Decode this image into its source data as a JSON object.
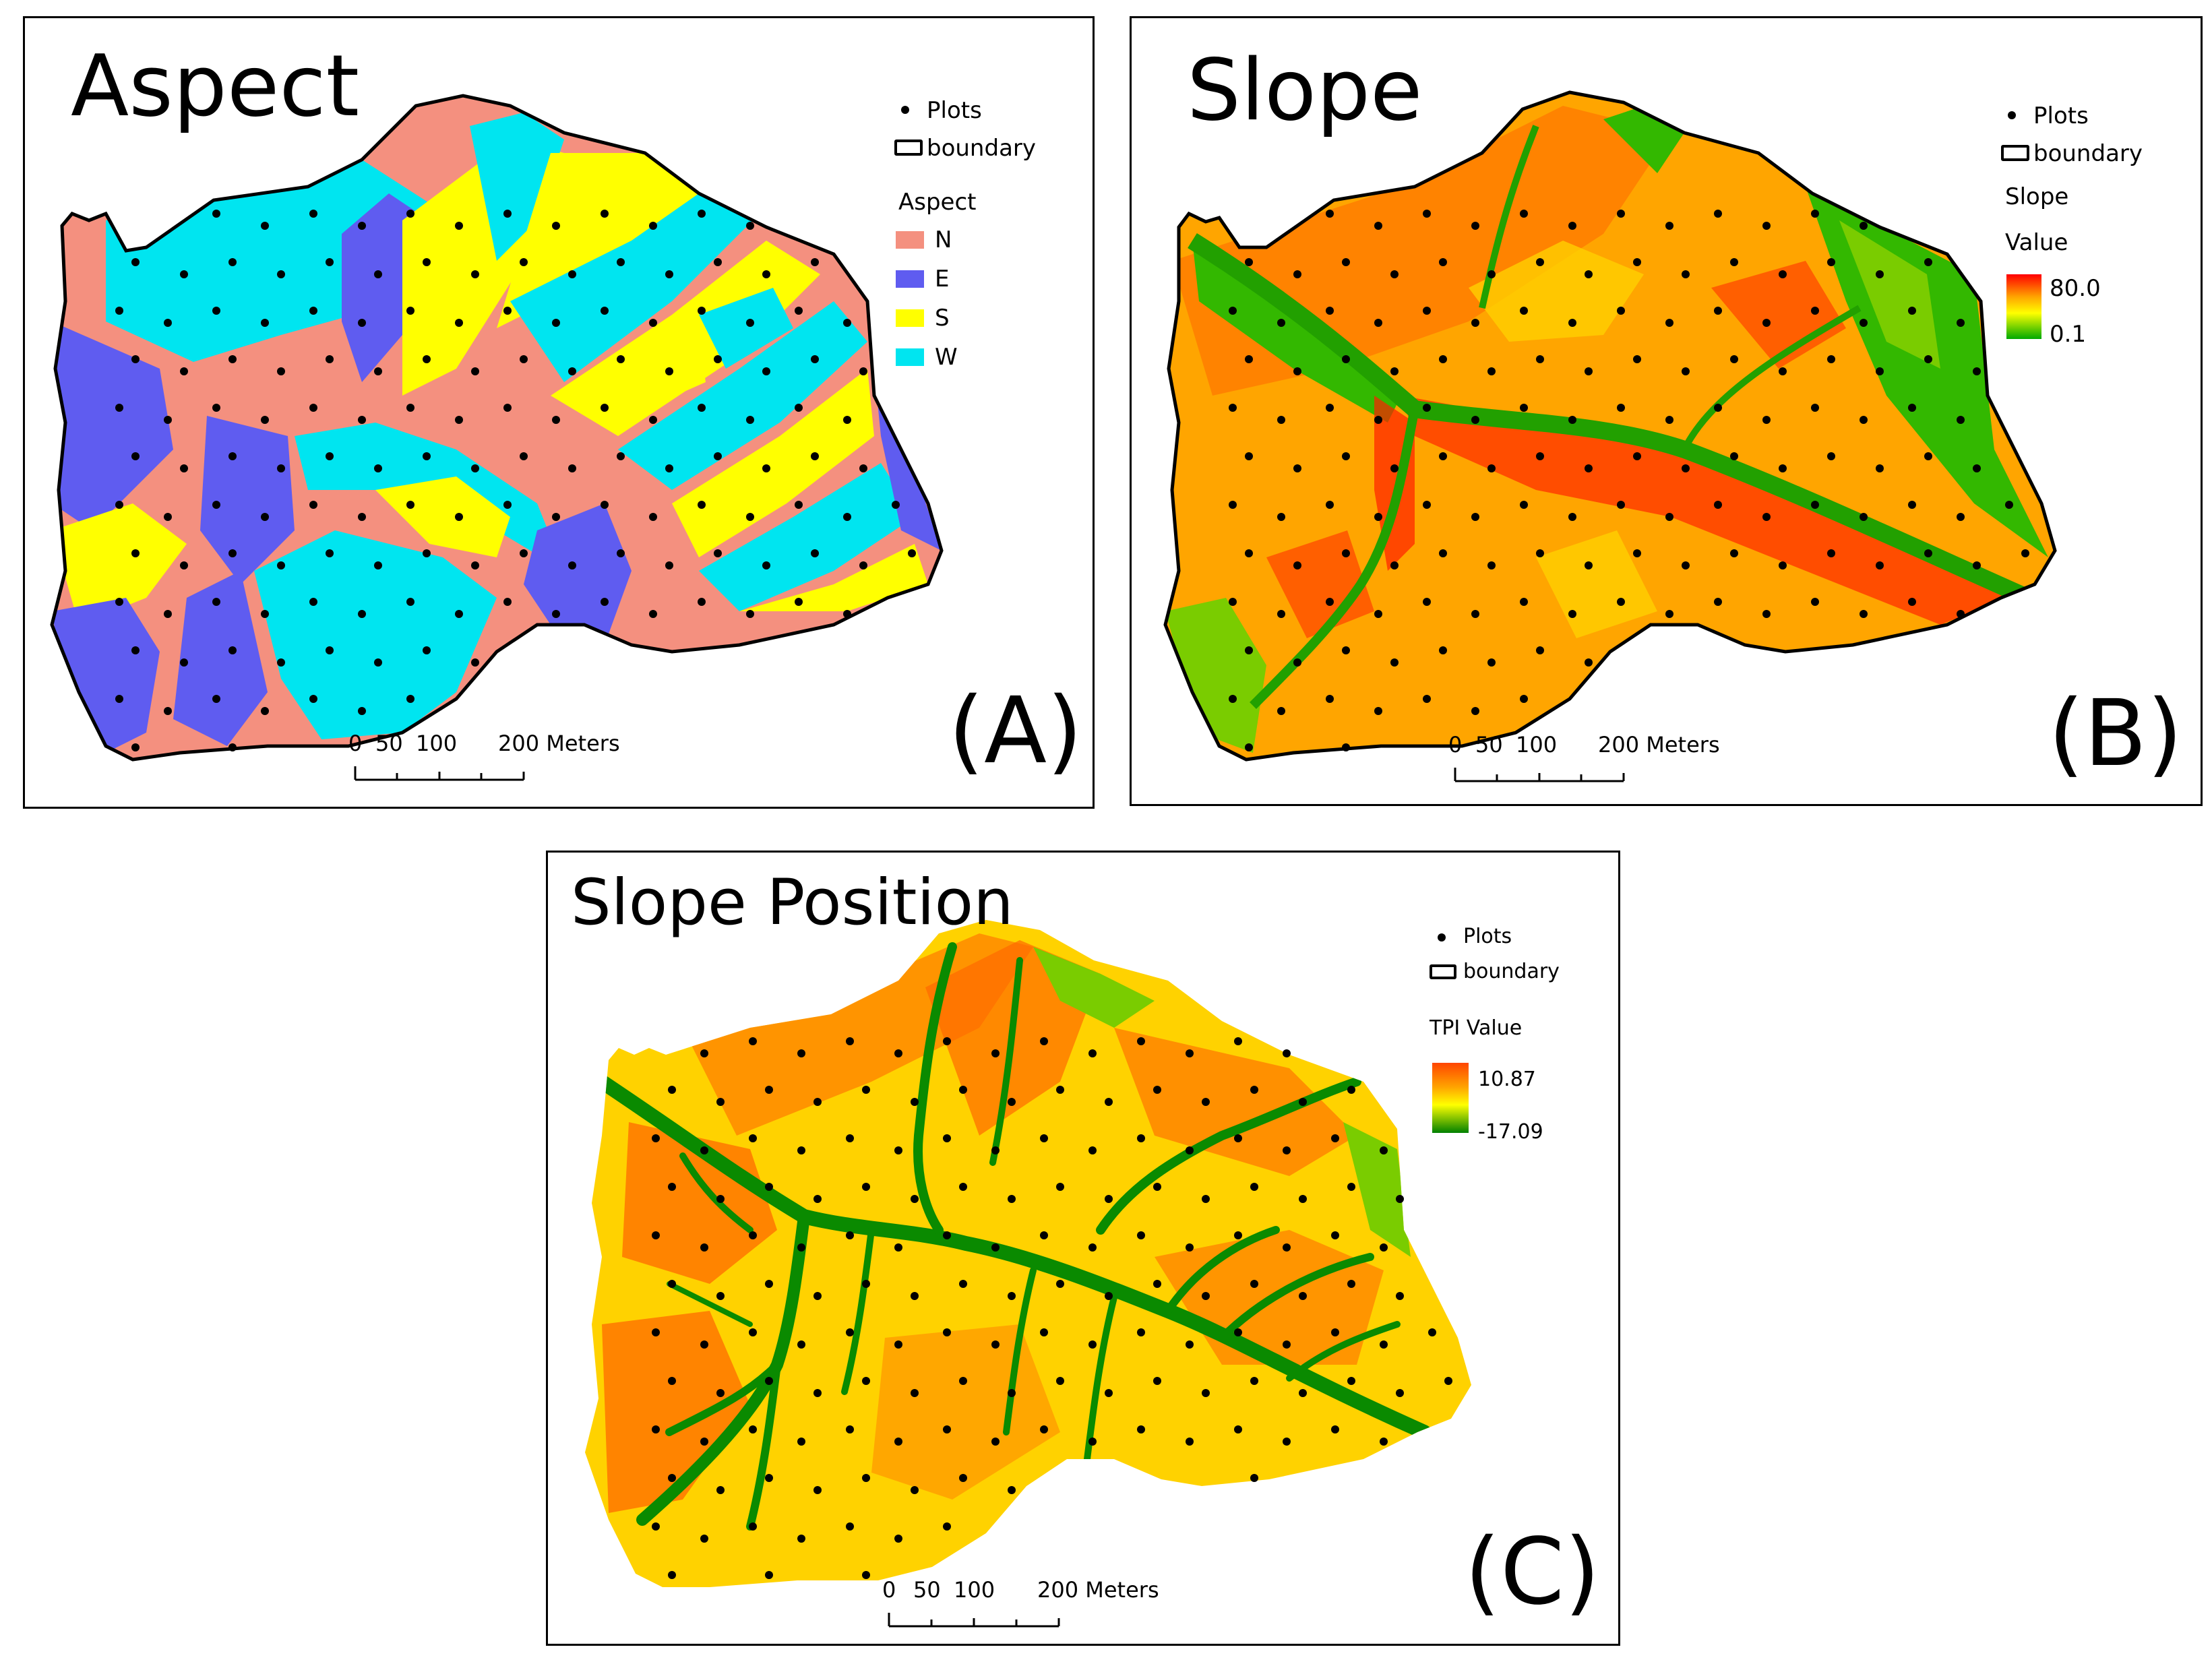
{
  "panels": {
    "a": {
      "title": "Aspect",
      "letter": "(A)",
      "legend": {
        "plots": "Plots",
        "boundary": "boundary",
        "heading": "Aspect",
        "classes": [
          {
            "label": "N",
            "color": "#F4907F"
          },
          {
            "label": "E",
            "color": "#5F5CF0"
          },
          {
            "label": "S",
            "color": "#FFFF00"
          },
          {
            "label": "W",
            "color": "#00E5F0"
          }
        ]
      },
      "scale": {
        "ticks": [
          "0",
          "50",
          "100",
          "200 Meters"
        ]
      }
    },
    "b": {
      "title": "Slope",
      "letter": "(B)",
      "legend": {
        "plots": "Plots",
        "boundary": "boundary",
        "heading1": "Slope",
        "heading2": "Value",
        "high": "80.0",
        "low": "0.1",
        "ramp": [
          "#FF0000",
          "#FFA500",
          "#FFFF00",
          "#00AA00"
        ]
      },
      "scale": {
        "ticks": [
          "0",
          "50",
          "100",
          "200 Meters"
        ]
      }
    },
    "c": {
      "title": "Slope Position",
      "letter": "(C)",
      "legend": {
        "plots": "Plots",
        "boundary": "boundary",
        "heading": "TPI Value",
        "high": "10.87",
        "low": "-17.09",
        "ramp": [
          "#FF4500",
          "#FFA500",
          "#FFFF00",
          "#008000"
        ]
      },
      "scale": {
        "ticks": [
          "0",
          "50",
          "100",
          "200 Meters"
        ]
      }
    }
  },
  "colors": {
    "aspect_n": "#F4907F",
    "aspect_e": "#5F5CF0",
    "aspect_s": "#FFFF00",
    "aspect_w": "#00E5F0",
    "slope_high": "#FF2A00",
    "slope_mid": "#FFA500",
    "slope_low": "#22B000",
    "tpi_high": "#FF5A00",
    "tpi_mid": "#FFE000",
    "tpi_low": "#008A00"
  },
  "icons": {
    "plot_marker": "black-dot-icon",
    "boundary_marker": "rounded-rectangle-outline-icon"
  }
}
